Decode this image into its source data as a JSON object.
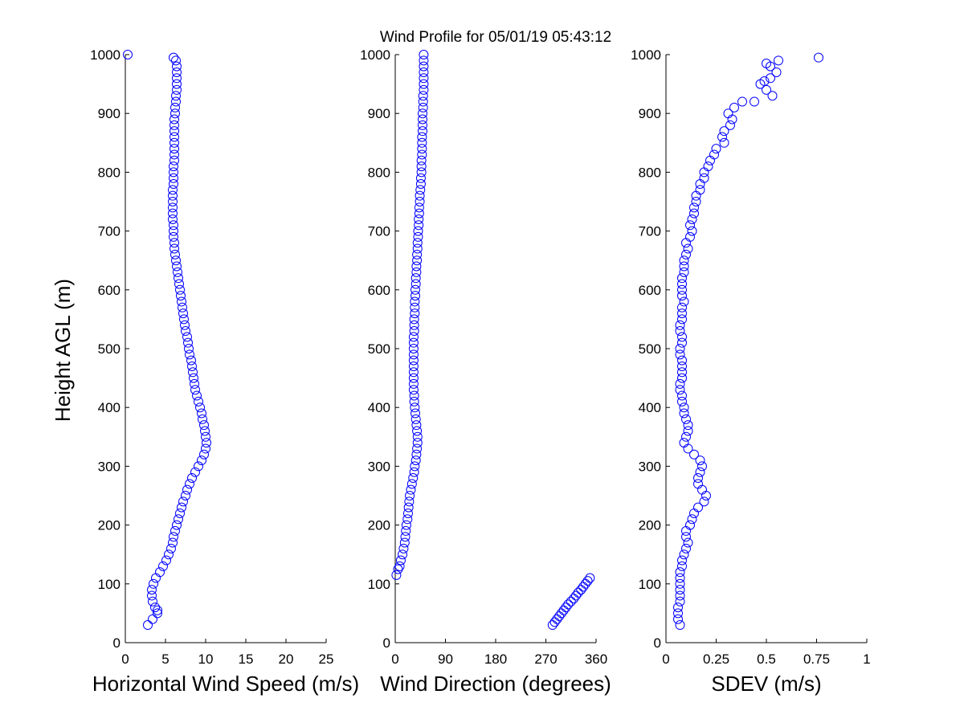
{
  "figure": {
    "title": "Wind Profile for  05/01/19 05:43:12",
    "ylabel": "Height AGL (m)",
    "marker_color": "#0000ff",
    "marker": "open-circle"
  },
  "chart_data": [
    {
      "type": "scatter",
      "xlabel": "Horizontal Wind Speed (m/s)",
      "ylabel": "Height AGL (m)",
      "xlim": [
        0,
        25
      ],
      "ylim": [
        0,
        1000
      ],
      "xticks": [
        "0",
        "5",
        "10",
        "15",
        "20",
        "25"
      ],
      "yticks": [
        "0",
        "100",
        "200",
        "300",
        "400",
        "500",
        "600",
        "700",
        "800",
        "900",
        "1000"
      ],
      "grid": false,
      "profile": [
        [
          30,
          2.8
        ],
        [
          40,
          3.4
        ],
        [
          50,
          4.0
        ],
        [
          55,
          4.0
        ],
        [
          60,
          3.7
        ],
        [
          70,
          3.4
        ],
        [
          80,
          3.3
        ],
        [
          90,
          3.3
        ],
        [
          100,
          3.5
        ],
        [
          110,
          3.8
        ],
        [
          120,
          4.3
        ],
        [
          130,
          4.7
        ],
        [
          140,
          5.1
        ],
        [
          150,
          5.4
        ],
        [
          160,
          5.7
        ],
        [
          170,
          5.9
        ],
        [
          180,
          6.0
        ],
        [
          190,
          6.2
        ],
        [
          200,
          6.4
        ],
        [
          210,
          6.6
        ],
        [
          220,
          6.8
        ],
        [
          230,
          7.0
        ],
        [
          240,
          7.2
        ],
        [
          250,
          7.5
        ],
        [
          260,
          7.7
        ],
        [
          270,
          8.0
        ],
        [
          280,
          8.3
        ],
        [
          290,
          8.7
        ],
        [
          300,
          9.1
        ],
        [
          310,
          9.5
        ],
        [
          320,
          9.8
        ],
        [
          330,
          10.0
        ],
        [
          340,
          10.1
        ],
        [
          350,
          10.0
        ],
        [
          360,
          9.9
        ],
        [
          370,
          9.8
        ],
        [
          380,
          9.6
        ],
        [
          390,
          9.5
        ],
        [
          400,
          9.3
        ],
        [
          410,
          9.1
        ],
        [
          420,
          8.9
        ],
        [
          430,
          8.7
        ],
        [
          440,
          8.6
        ],
        [
          450,
          8.5
        ],
        [
          460,
          8.4
        ],
        [
          470,
          8.3
        ],
        [
          480,
          8.2
        ],
        [
          490,
          8.0
        ],
        [
          500,
          7.9
        ],
        [
          510,
          7.8
        ],
        [
          520,
          7.7
        ],
        [
          530,
          7.5
        ],
        [
          540,
          7.4
        ],
        [
          550,
          7.3
        ],
        [
          560,
          7.2
        ],
        [
          570,
          7.1
        ],
        [
          580,
          7.0
        ],
        [
          590,
          6.9
        ],
        [
          600,
          6.8
        ],
        [
          610,
          6.7
        ],
        [
          620,
          6.6
        ],
        [
          630,
          6.5
        ],
        [
          640,
          6.4
        ],
        [
          650,
          6.3
        ],
        [
          660,
          6.2
        ],
        [
          670,
          6.1
        ],
        [
          680,
          6.1
        ],
        [
          690,
          6.0
        ],
        [
          700,
          6.0
        ],
        [
          710,
          6.0
        ],
        [
          720,
          5.9
        ],
        [
          730,
          5.9
        ],
        [
          740,
          5.9
        ],
        [
          750,
          5.9
        ],
        [
          760,
          5.9
        ],
        [
          770,
          5.9
        ],
        [
          780,
          6.0
        ],
        [
          790,
          6.0
        ],
        [
          800,
          6.0
        ],
        [
          810,
          6.0
        ],
        [
          820,
          6.1
        ],
        [
          830,
          6.1
        ],
        [
          840,
          6.1
        ],
        [
          850,
          6.1
        ],
        [
          860,
          6.1
        ],
        [
          870,
          6.1
        ],
        [
          880,
          6.1
        ],
        [
          890,
          6.1
        ],
        [
          900,
          6.2
        ],
        [
          910,
          6.2
        ],
        [
          920,
          6.3
        ],
        [
          930,
          6.3
        ],
        [
          940,
          6.4
        ],
        [
          950,
          6.4
        ],
        [
          960,
          6.4
        ],
        [
          970,
          6.4
        ],
        [
          980,
          6.4
        ],
        [
          990,
          6.3
        ],
        [
          995,
          6.0
        ]
      ],
      "outliers": [
        [
          1000,
          0.3
        ]
      ]
    },
    {
      "type": "scatter",
      "xlabel": "Wind Direction (degrees)",
      "ylabel": "Height AGL (m)",
      "xlim": [
        0,
        360
      ],
      "ylim": [
        0,
        1000
      ],
      "xticks": [
        "0",
        "90",
        "180",
        "270",
        "360"
      ],
      "yticks": [
        "0",
        "100",
        "200",
        "300",
        "400",
        "500",
        "600",
        "700",
        "800",
        "900",
        "1000"
      ],
      "grid": false,
      "profile": [
        [
          115,
          2
        ],
        [
          125,
          5
        ],
        [
          130,
          8
        ],
        [
          140,
          10
        ],
        [
          150,
          13
        ],
        [
          160,
          15
        ],
        [
          170,
          17
        ],
        [
          180,
          18
        ],
        [
          190,
          19
        ],
        [
          200,
          20
        ],
        [
          210,
          22
        ],
        [
          220,
          23
        ],
        [
          230,
          24
        ],
        [
          240,
          25
        ],
        [
          250,
          26
        ],
        [
          260,
          28
        ],
        [
          270,
          30
        ],
        [
          280,
          32
        ],
        [
          290,
          34
        ],
        [
          300,
          35
        ],
        [
          310,
          37
        ],
        [
          320,
          38
        ],
        [
          330,
          39
        ],
        [
          340,
          40
        ],
        [
          350,
          40
        ],
        [
          360,
          39
        ],
        [
          370,
          38
        ],
        [
          380,
          37
        ],
        [
          390,
          36
        ],
        [
          400,
          35
        ],
        [
          410,
          34
        ],
        [
          420,
          34
        ],
        [
          430,
          33
        ],
        [
          440,
          33
        ],
        [
          450,
          33
        ],
        [
          460,
          33
        ],
        [
          470,
          33
        ],
        [
          480,
          33
        ],
        [
          490,
          33
        ],
        [
          500,
          33
        ],
        [
          510,
          33
        ],
        [
          520,
          33
        ],
        [
          530,
          34
        ],
        [
          540,
          34
        ],
        [
          550,
          34
        ],
        [
          560,
          35
        ],
        [
          570,
          35
        ],
        [
          580,
          35
        ],
        [
          590,
          36
        ],
        [
          600,
          36
        ],
        [
          610,
          37
        ],
        [
          620,
          37
        ],
        [
          630,
          38
        ],
        [
          640,
          38
        ],
        [
          650,
          39
        ],
        [
          660,
          39
        ],
        [
          670,
          40
        ],
        [
          680,
          40
        ],
        [
          690,
          41
        ],
        [
          700,
          41
        ],
        [
          710,
          42
        ],
        [
          720,
          42
        ],
        [
          730,
          43
        ],
        [
          740,
          43
        ],
        [
          750,
          44
        ],
        [
          760,
          44
        ],
        [
          770,
          45
        ],
        [
          780,
          46
        ],
        [
          790,
          46
        ],
        [
          800,
          47
        ],
        [
          810,
          47
        ],
        [
          820,
          47
        ],
        [
          830,
          48
        ],
        [
          840,
          48
        ],
        [
          850,
          48
        ],
        [
          860,
          48
        ],
        [
          870,
          49
        ],
        [
          880,
          49
        ],
        [
          890,
          49
        ],
        [
          900,
          49
        ],
        [
          910,
          50
        ],
        [
          920,
          50
        ],
        [
          930,
          50
        ],
        [
          940,
          51
        ],
        [
          950,
          51
        ],
        [
          960,
          51
        ],
        [
          970,
          51
        ],
        [
          980,
          51
        ],
        [
          990,
          51
        ],
        [
          1000,
          51
        ]
      ],
      "low_level": [
        [
          30,
          282
        ],
        [
          35,
          286
        ],
        [
          40,
          290
        ],
        [
          45,
          294
        ],
        [
          50,
          298
        ],
        [
          55,
          302
        ],
        [
          60,
          306
        ],
        [
          65,
          310
        ],
        [
          70,
          315
        ],
        [
          75,
          320
        ],
        [
          80,
          324
        ],
        [
          85,
          328
        ],
        [
          90,
          333
        ],
        [
          95,
          337
        ],
        [
          100,
          341
        ],
        [
          105,
          345
        ],
        [
          110,
          349
        ]
      ]
    },
    {
      "type": "scatter",
      "xlabel": "SDEV  (m/s)",
      "ylabel": "Height AGL (m)",
      "xlim": [
        0,
        1
      ],
      "ylim": [
        0,
        1000
      ],
      "xticks": [
        "0",
        "0.25",
        "0.5",
        "0.75",
        "1"
      ],
      "yticks": [
        "0",
        "100",
        "200",
        "300",
        "400",
        "500",
        "600",
        "700",
        "800",
        "900",
        "1000"
      ],
      "grid": false,
      "profile": [
        [
          30,
          0.07
        ],
        [
          40,
          0.06
        ],
        [
          50,
          0.06
        ],
        [
          60,
          0.06
        ],
        [
          70,
          0.07
        ],
        [
          80,
          0.07
        ],
        [
          90,
          0.07
        ],
        [
          100,
          0.07
        ],
        [
          110,
          0.07
        ],
        [
          120,
          0.07
        ],
        [
          130,
          0.08
        ],
        [
          140,
          0.08
        ],
        [
          150,
          0.09
        ],
        [
          160,
          0.1
        ],
        [
          170,
          0.11
        ],
        [
          180,
          0.1
        ],
        [
          190,
          0.1
        ],
        [
          200,
          0.12
        ],
        [
          210,
          0.13
        ],
        [
          220,
          0.14
        ],
        [
          230,
          0.16
        ],
        [
          240,
          0.19
        ],
        [
          250,
          0.2
        ],
        [
          260,
          0.18
        ],
        [
          270,
          0.16
        ],
        [
          280,
          0.16
        ],
        [
          290,
          0.17
        ],
        [
          300,
          0.18
        ],
        [
          310,
          0.17
        ],
        [
          320,
          0.14
        ],
        [
          330,
          0.11
        ],
        [
          340,
          0.09
        ],
        [
          350,
          0.1
        ],
        [
          360,
          0.11
        ],
        [
          370,
          0.11
        ],
        [
          380,
          0.1
        ],
        [
          390,
          0.09
        ],
        [
          400,
          0.09
        ],
        [
          410,
          0.08
        ],
        [
          420,
          0.08
        ],
        [
          430,
          0.07
        ],
        [
          440,
          0.07
        ],
        [
          450,
          0.08
        ],
        [
          460,
          0.08
        ],
        [
          470,
          0.08
        ],
        [
          480,
          0.08
        ],
        [
          490,
          0.07
        ],
        [
          500,
          0.07
        ],
        [
          510,
          0.08
        ],
        [
          520,
          0.08
        ],
        [
          530,
          0.07
        ],
        [
          540,
          0.07
        ],
        [
          550,
          0.08
        ],
        [
          560,
          0.08
        ],
        [
          570,
          0.08
        ],
        [
          580,
          0.09
        ],
        [
          590,
          0.08
        ],
        [
          600,
          0.08
        ],
        [
          610,
          0.08
        ],
        [
          620,
          0.08
        ],
        [
          630,
          0.09
        ],
        [
          640,
          0.09
        ],
        [
          650,
          0.09
        ],
        [
          660,
          0.1
        ],
        [
          670,
          0.11
        ],
        [
          680,
          0.1
        ],
        [
          690,
          0.12
        ],
        [
          700,
          0.13
        ],
        [
          710,
          0.12
        ],
        [
          720,
          0.13
        ],
        [
          730,
          0.14
        ],
        [
          740,
          0.14
        ],
        [
          750,
          0.15
        ],
        [
          760,
          0.15
        ],
        [
          770,
          0.17
        ],
        [
          780,
          0.17
        ],
        [
          790,
          0.19
        ],
        [
          800,
          0.19
        ],
        [
          810,
          0.21
        ],
        [
          820,
          0.22
        ],
        [
          830,
          0.24
        ],
        [
          840,
          0.25
        ],
        [
          850,
          0.29
        ],
        [
          860,
          0.28
        ],
        [
          870,
          0.29
        ],
        [
          880,
          0.32
        ],
        [
          890,
          0.33
        ],
        [
          900,
          0.31
        ],
        [
          910,
          0.34
        ],
        [
          920,
          0.38
        ],
        [
          930,
          0.53
        ],
        [
          940,
          0.5
        ],
        [
          950,
          0.47
        ],
        [
          960,
          0.52
        ],
        [
          970,
          0.55
        ],
        [
          980,
          0.52
        ],
        [
          990,
          0.56
        ],
        [
          995,
          0.76
        ]
      ],
      "outliers": [
        [
          920,
          0.44
        ],
        [
          955,
          0.49
        ],
        [
          985,
          0.5
        ]
      ]
    }
  ]
}
